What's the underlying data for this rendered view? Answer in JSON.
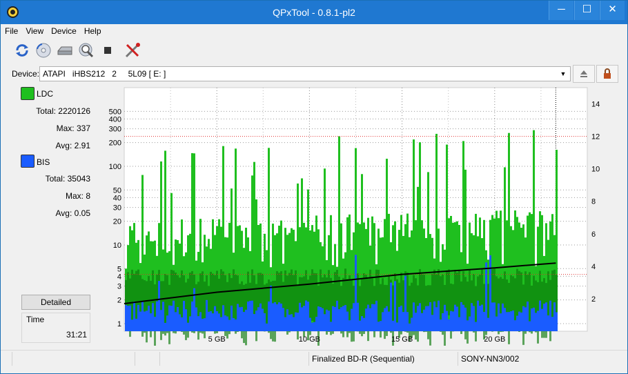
{
  "window": {
    "title": "QPxTool - 0.8.1-pl2",
    "min_glyph": "─",
    "max_glyph": "☐",
    "close_glyph": "✕"
  },
  "menu": [
    "File",
    "View",
    "Device",
    "Help"
  ],
  "toolbar_icons": [
    "refresh-icon",
    "disc-icon",
    "drive-icon",
    "scan-icon",
    "stop-icon",
    "settings-icon"
  ],
  "device": {
    "label": "Device:",
    "value": "ATAPI   iHBS212   2     5L09 [ E: ]",
    "arrow": "▼"
  },
  "ldc": {
    "name": "LDC",
    "color": "#1fbf1f",
    "total": "Total: 2220126",
    "max": "Max: 337",
    "avg": "Avg: 2.91"
  },
  "bis": {
    "name": "BIS",
    "color": "#1a5cff",
    "total": "Total: 35043",
    "max": "Max: 8",
    "avg": "Avg: 0.05"
  },
  "detailed_label": "Detailed",
  "time": {
    "label": "Time",
    "value": "31:21"
  },
  "status": {
    "disc": "Finalized BD-R (Sequential)",
    "media": "SONY-NN3/002"
  },
  "chart_data": {
    "type": "bar",
    "x_ticks": [
      "5 GB",
      "10 GB",
      "15 GB",
      "20 GB"
    ],
    "x_tick_values": [
      5,
      10,
      15,
      20
    ],
    "xlim": [
      0,
      25
    ],
    "data_end_gb": 23.3,
    "y_left_ticks": [
      "1",
      "2",
      "3",
      "4",
      "5",
      "10",
      "20",
      "30",
      "40",
      "50",
      "100",
      "200",
      "300",
      "400",
      "500"
    ],
    "y_left_tick_values": [
      1,
      2,
      3,
      4,
      5,
      10,
      20,
      30,
      40,
      50,
      100,
      200,
      300,
      400,
      500
    ],
    "y_left_scale": "log",
    "y_left_lim": [
      0.8,
      1000
    ],
    "y_right_ticks": [
      "2",
      "4",
      "6",
      "8",
      "10",
      "12",
      "14"
    ],
    "y_right_tick_values": [
      2,
      4,
      6,
      8,
      10,
      12,
      14
    ],
    "y_right_lim": [
      0,
      15
    ],
    "grid": true,
    "series": [
      {
        "name": "LDC",
        "axis": "left",
        "color": "#1fbf1f",
        "typical_band": [
          5,
          20
        ],
        "max": 337
      },
      {
        "name": "BIS",
        "axis": "left",
        "color": "#1a5cff",
        "typical_band": [
          1,
          2
        ],
        "max": 8
      }
    ],
    "speed_curve": {
      "axis": "right",
      "color": "#000000",
      "x": [
        0,
        5,
        10,
        15,
        20,
        23.3
      ],
      "y": [
        1.7,
        2.4,
        2.9,
        3.5,
        3.9,
        4.2
      ]
    },
    "red_reference_lines": [
      12,
      3.5
    ]
  }
}
